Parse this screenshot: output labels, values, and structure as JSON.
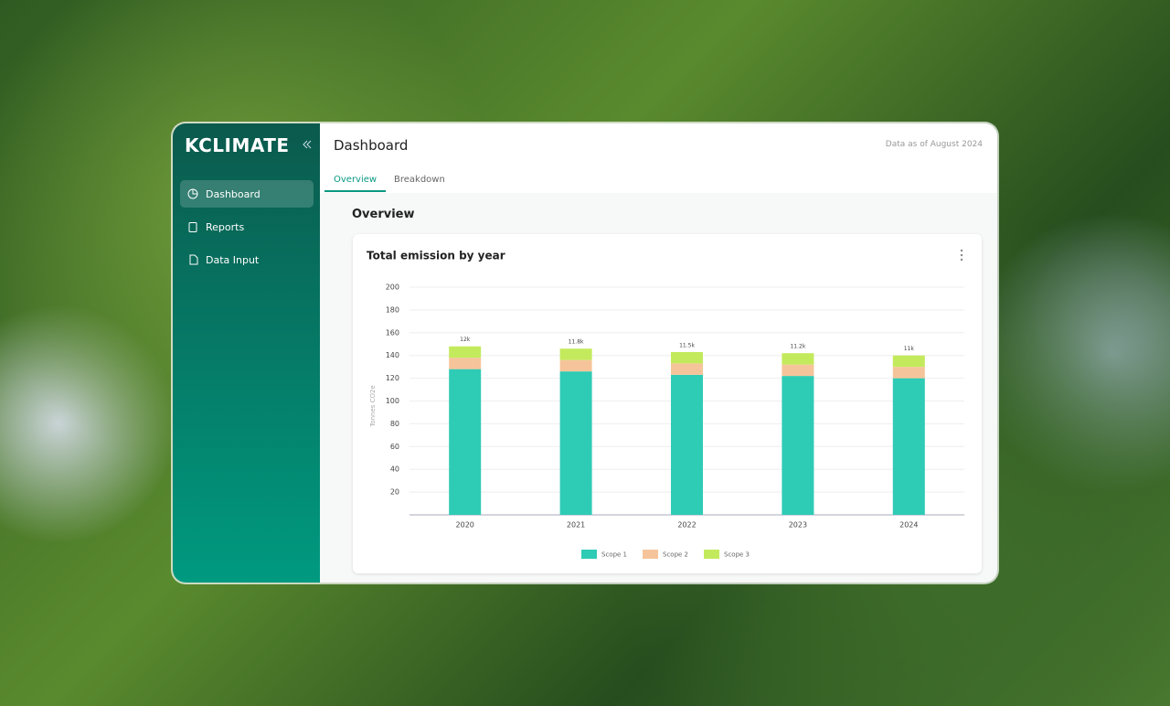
{
  "sidebar": {
    "brand": "KCLIMATE",
    "nav": [
      "Dashboard",
      "Reports",
      "Data Input"
    ]
  },
  "header": {
    "title": "Dashboard",
    "as_of": "Data as of August 2024",
    "tabs": [
      "Overview",
      "Breakdown"
    ]
  },
  "section_title": "Overview",
  "chart_data": {
    "type": "stacked_bar",
    "title": "Total emission by year",
    "y_label": "Tonnes CO2e",
    "categories": [
      "2020",
      "2021",
      "2022",
      "2023",
      "2024"
    ],
    "series": [
      {
        "name": "Scope 1",
        "color": "#2ecbb5",
        "values": [
          128,
          126,
          123,
          122,
          120
        ]
      },
      {
        "name": "Scope 2",
        "color": "#f6c49a",
        "values": [
          10,
          10,
          10,
          10,
          10
        ]
      },
      {
        "name": "Scope 3",
        "color": "#c3ea5c",
        "values": [
          10,
          10,
          10,
          10,
          10
        ]
      }
    ],
    "annotations": [
      "12k",
      "11.8k",
      "11.5k",
      "11.2k",
      "11k"
    ],
    "ylim": [
      0,
      200
    ],
    "yticks": [
      20,
      40,
      60,
      80,
      100,
      120,
      140,
      160,
      180,
      200
    ],
    "grid": true
  }
}
